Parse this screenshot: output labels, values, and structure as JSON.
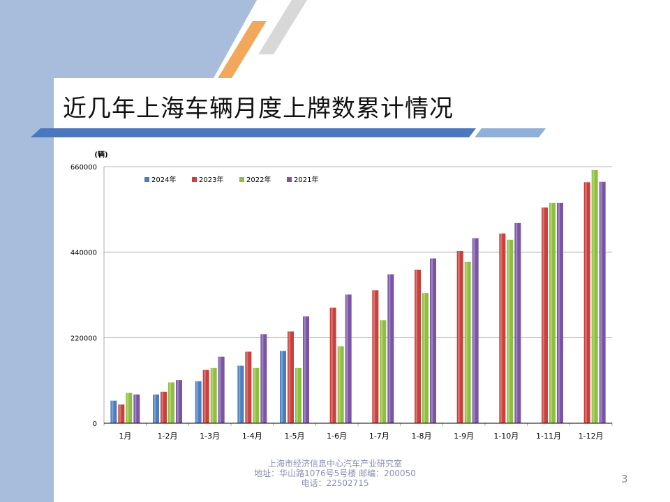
{
  "slide": {
    "title": "近几年上海车辆月度上牌数累计情况",
    "page_number": "3",
    "footer": {
      "org": "上海市经济信息中心汽车产业研究室",
      "address": "地址：华山路1076号5号楼   邮编：200050",
      "phone": "电话：22502715"
    }
  },
  "colors": {
    "sidebar": "#a8bcdb",
    "title_bar": "#4a78c0",
    "accent_orange": "#f2a85a",
    "accent_gray": "#d8d8d8",
    "series": [
      "#4a7ec0",
      "#c9403d",
      "#8fbf3f",
      "#7a55a6"
    ]
  },
  "chart_data": {
    "type": "bar",
    "title": "",
    "ylabel": "(辆)",
    "xlabel": "",
    "ylim": [
      0,
      660000
    ],
    "yticks": [
      0,
      220000,
      440000,
      660000
    ],
    "legend_position": "top-left",
    "categories": [
      "1月",
      "1-2月",
      "1-3月",
      "1-4月",
      "1-5月",
      "1-6月",
      "1-7月",
      "1-8月",
      "1-9月",
      "1-10月",
      "1-11月",
      "1-12月"
    ],
    "series": [
      {
        "name": "2024年",
        "values": [
          58000,
          74000,
          108000,
          148000,
          186000,
          null,
          null,
          null,
          null,
          null,
          null,
          null
        ]
      },
      {
        "name": "2023年",
        "values": [
          48000,
          81000,
          137000,
          184000,
          236000,
          297000,
          342000,
          395000,
          443000,
          488000,
          555000,
          620000
        ]
      },
      {
        "name": "2022年",
        "values": [
          78000,
          105000,
          142000,
          142000,
          142000,
          198000,
          265000,
          335000,
          415000,
          472000,
          567000,
          651000
        ]
      },
      {
        "name": "2021年",
        "values": [
          74000,
          111000,
          171000,
          229000,
          275000,
          331000,
          383000,
          424000,
          476000,
          515000,
          567000,
          621000
        ]
      }
    ]
  }
}
